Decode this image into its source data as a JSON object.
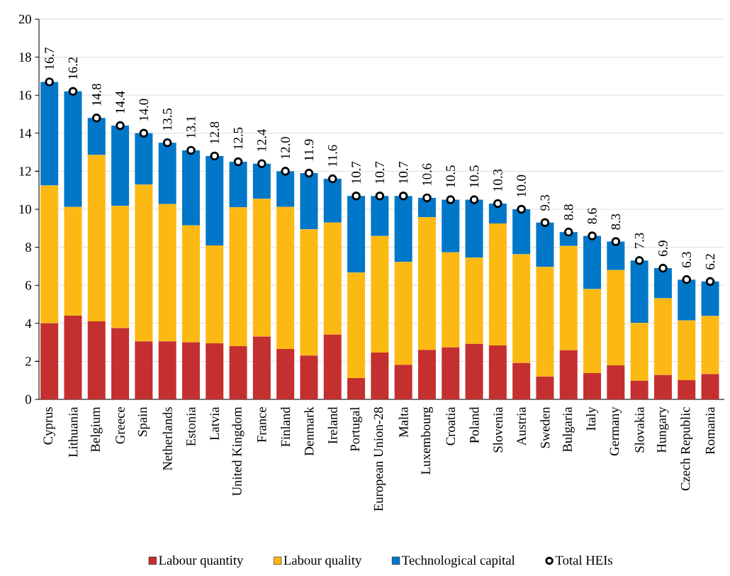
{
  "chart_data": {
    "type": "bar",
    "stacked": true,
    "grid": "y",
    "legend": "bottom",
    "categories": [
      "Cyprus",
      "Lithuania",
      "Belgium",
      "Greece",
      "Spain",
      "Netherlands",
      "Estonia",
      "Latvia",
      "United Kingdom",
      "France",
      "Finland",
      "Denmark",
      "Ireland",
      "Portugal",
      "European Union-28",
      "Malta",
      "Luxembourg",
      "Croatia",
      "Poland",
      "Slovenia",
      "Austria",
      "Sweden",
      "Bulgaria",
      "Italy",
      "Germany",
      "Slovakia",
      "Hungary",
      "Czech Republic",
      "Romania"
    ],
    "ylim": [
      0,
      20
    ],
    "yticks": [
      0,
      2,
      4,
      6,
      8,
      10,
      12,
      14,
      16,
      18,
      20
    ],
    "series": [
      {
        "name": "Labour quantity",
        "color": "#c3302f",
        "values": [
          4.0,
          4.4,
          4.1,
          3.75,
          3.05,
          3.05,
          3.0,
          2.95,
          2.8,
          3.3,
          2.65,
          2.3,
          3.4,
          1.12,
          2.46,
          1.82,
          2.6,
          2.73,
          2.92,
          2.84,
          1.91,
          1.2,
          2.58,
          1.38,
          1.79,
          0.98,
          1.28,
          1.01,
          1.33
        ]
      },
      {
        "name": "Labour quality",
        "color": "#fdb913",
        "values": [
          7.25,
          5.72,
          8.75,
          6.43,
          8.25,
          7.22,
          6.15,
          5.15,
          7.3,
          7.25,
          7.47,
          6.65,
          5.9,
          5.55,
          6.13,
          5.41,
          6.98,
          5.0,
          4.53,
          6.41,
          5.72,
          5.77,
          5.49,
          4.42,
          5.01,
          3.04,
          4.04,
          3.14,
          3.05
        ]
      },
      {
        "name": "Technological capital",
        "color": "#0077c8",
        "values": [
          5.45,
          6.08,
          1.95,
          4.22,
          2.7,
          3.23,
          3.95,
          4.7,
          2.4,
          1.85,
          1.88,
          2.95,
          2.3,
          4.03,
          2.11,
          3.47,
          1.02,
          2.77,
          3.05,
          1.05,
          2.37,
          2.33,
          0.73,
          2.8,
          1.5,
          3.28,
          1.58,
          2.15,
          1.82
        ]
      },
      {
        "name": "Total HEIs",
        "type": "scatter",
        "marker": "circle",
        "color": "#000000",
        "values": [
          16.7,
          16.2,
          14.8,
          14.4,
          14.0,
          13.5,
          13.1,
          12.8,
          12.5,
          12.4,
          12.0,
          11.9,
          11.6,
          10.7,
          10.7,
          10.7,
          10.6,
          10.5,
          10.5,
          10.3,
          10.0,
          9.3,
          8.8,
          8.6,
          8.3,
          7.3,
          6.9,
          6.3,
          6.2
        ],
        "value_labels": [
          "16.7",
          "16.2",
          "14.8",
          "14.4",
          "14.0",
          "13.5",
          "13.1",
          "12.8",
          "12.5",
          "12.4",
          "12.0",
          "11.9",
          "11.6",
          "10.7",
          "10.7",
          "10.7",
          "10.6",
          "10.5",
          "10.5",
          "10.3",
          "10.0",
          "9.3",
          "8.8",
          "8.6",
          "8.3",
          "7.3",
          "6.9",
          "6.3",
          "6.2"
        ]
      }
    ]
  }
}
